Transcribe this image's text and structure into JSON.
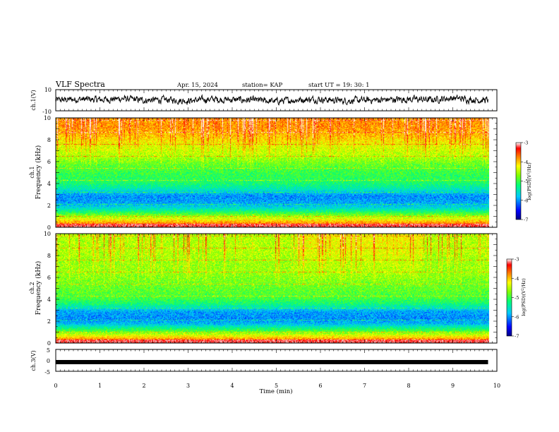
{
  "header": {
    "title": "VLF Spectra",
    "date": "Apr. 15, 2024",
    "station": "station= KAP",
    "start_ut": "start  UT  =   19: 30: 1"
  },
  "colors": {
    "background": "#ffffff",
    "axis": "#000000",
    "colormap": [
      "#000080",
      "#0000ff",
      "#00c8ff",
      "#00ff80",
      "#80ff00",
      "#ffff00",
      "#ff8000",
      "#ff0000",
      "#ffffff"
    ]
  },
  "chart_data": [
    {
      "id": "ch1-waveform",
      "type": "line",
      "ylabel": "ch.1(V)",
      "ylim": [
        -10,
        10
      ],
      "yticks": [
        "10",
        "-10"
      ],
      "xlim": [
        0,
        10
      ],
      "series": [
        {
          "x": [
            0,
            0.5,
            1,
            1.5,
            2,
            2.5,
            3,
            3.5,
            4,
            4.5,
            5,
            5.5,
            6,
            6.5,
            7,
            7.5,
            8,
            8.5,
            9,
            9.5,
            9.8
          ],
          "values": [
            0,
            1,
            0.5,
            1.5,
            0,
            0.5,
            -0.5,
            1,
            0.5,
            0,
            -1,
            0.5,
            1,
            -0.5,
            0,
            0.5,
            1,
            0.5,
            2,
            0.5,
            0
          ]
        }
      ]
    },
    {
      "id": "ch1-spectrogram",
      "type": "heatmap",
      "ylabel": "ch.1\nFrequency (kHz)",
      "ylim": [
        0,
        10
      ],
      "yticks": [
        "0",
        "2",
        "4",
        "6",
        "8",
        "10"
      ],
      "xlim": [
        0,
        9.8
      ],
      "colorbar": {
        "label": "log(PSD)(V²/Hz)",
        "range": [
          -7,
          -3
        ],
        "ticks": [
          "-3",
          "-4",
          "-5",
          "-6",
          "-7"
        ]
      },
      "freq_bands_khz": [
        0.2,
        1.2,
        1.8,
        2.3,
        2.9,
        3.6,
        4.2,
        5.0,
        5.8,
        6.6,
        7.5,
        8.3,
        9.2
      ],
      "band_level": [
        -3.5,
        -4.8,
        -5.6,
        -5.9,
        -6.0,
        -5.4,
        -5.1,
        -5.0,
        -4.8,
        -4.5,
        -4.3,
        -4.0,
        -3.8
      ]
    },
    {
      "id": "ch2-spectrogram",
      "type": "heatmap",
      "ylabel": "ch.2\nFrequency (kHz)",
      "ylim": [
        0,
        10
      ],
      "yticks": [
        "0",
        "2",
        "4",
        "6",
        "8",
        "10"
      ],
      "xlim": [
        0,
        9.8
      ],
      "colorbar": {
        "label": "log(PSD)(V²/Hz)",
        "range": [
          -7,
          -3
        ],
        "ticks": [
          "-3",
          "-4",
          "-5",
          "-6",
          "-7"
        ]
      },
      "freq_bands_khz": [
        0.2,
        1.2,
        1.8,
        2.3,
        2.9,
        3.6,
        4.2,
        5.0,
        5.8,
        6.6,
        7.5,
        8.3,
        9.2
      ],
      "band_level": [
        -3.5,
        -5.0,
        -5.8,
        -6.0,
        -5.9,
        -5.2,
        -4.9,
        -4.8,
        -4.7,
        -4.6,
        -4.6,
        -4.5,
        -4.5
      ]
    },
    {
      "id": "ch3-waveform",
      "type": "line",
      "ylabel": "ch.3(V)",
      "ylim": [
        -5,
        5
      ],
      "yticks": [
        "5",
        "0",
        "-5"
      ],
      "xlim": [
        0,
        10
      ],
      "xlabel": "Time  (min)",
      "xticks": [
        "0",
        "1",
        "2",
        "3",
        "4",
        "5",
        "6",
        "7",
        "8",
        "9",
        "10"
      ],
      "series": [
        {
          "x": [
            0,
            9.8
          ],
          "values": [
            -0.8,
            -0.8
          ]
        }
      ]
    }
  ]
}
